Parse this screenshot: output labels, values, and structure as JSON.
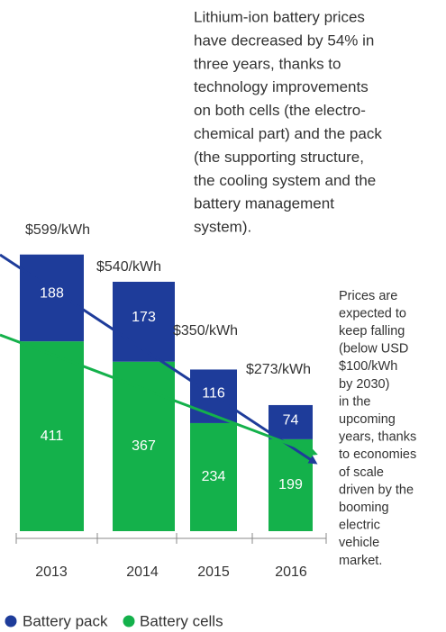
{
  "chart_data": {
    "type": "stacked_bar",
    "categories": [
      "2013",
      "2014",
      "2015",
      "2016"
    ],
    "series": [
      {
        "name": "Battery cells",
        "color": "#14b14b",
        "values": [
          411,
          367,
          234,
          199
        ]
      },
      {
        "name": "Battery pack",
        "color": "#1e3c9a",
        "values": [
          188,
          173,
          116,
          74
        ]
      }
    ],
    "total_labels": [
      "$599/kWh",
      "$540/kWh",
      "$350/kWh",
      "$273/kWh"
    ],
    "annotation_top": [
      "Lithium-ion battery prices",
      "have decreased by 54% in",
      "three years, thanks to",
      "technology improvements",
      "on both cells (the electro-",
      "chemical part) and the pack",
      "(the supporting structure,",
      "the cooling system and the",
      "battery management",
      "system)."
    ],
    "annotation_side": [
      "Prices are",
      "expected to",
      "keep falling",
      "(below USD",
      "$100/kWh",
      "by 2030)",
      "in the",
      "upcoming",
      "years, thanks",
      "to economies",
      "of scale",
      "driven by the",
      "booming",
      "electric",
      "vehicle",
      "market."
    ]
  }
}
